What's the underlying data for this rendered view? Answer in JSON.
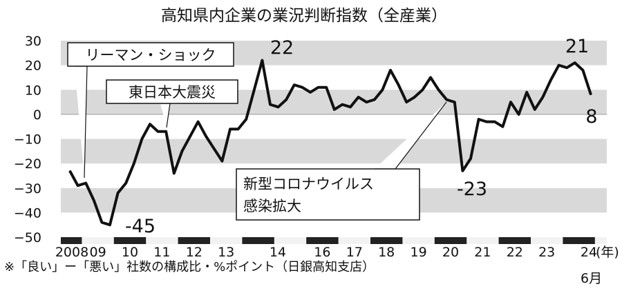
{
  "chart_data": {
    "type": "line",
    "title": "高知県内企業の業況判断指数（全産業）",
    "ylim": [
      -50,
      30
    ],
    "yticks": [
      30,
      20,
      10,
      0,
      -10,
      -20,
      -30,
      -40,
      -50
    ],
    "xtick_labels": [
      "2008",
      "09",
      "10",
      "11",
      "12",
      "13",
      "14",
      "16",
      "17",
      "18",
      "19",
      "20",
      "21",
      "22",
      "23",
      "24"
    ],
    "year_unit": "(年)",
    "end_period": "6月",
    "grid": true,
    "series": [
      {
        "values": [
          -23,
          -29,
          -28,
          -35,
          -44,
          -45,
          -32,
          -28,
          -20,
          -10,
          -4,
          -7,
          -7,
          -24,
          -15,
          -9,
          -3,
          -9,
          -14,
          -19,
          -6,
          -6,
          -2,
          10,
          22,
          4,
          3,
          6,
          12,
          11,
          9,
          11,
          11,
          2,
          4,
          3,
          7,
          5,
          6,
          10,
          18,
          12,
          5,
          7,
          10,
          15,
          10,
          6,
          5,
          -23,
          -18,
          -2,
          -3,
          -3,
          -5,
          5,
          0,
          9,
          2,
          7,
          14,
          20,
          19,
          21,
          18,
          8
        ]
      }
    ],
    "annotations": [
      {
        "id": "min_2009",
        "text": "-45"
      },
      {
        "id": "peak_2014",
        "text": "22"
      },
      {
        "id": "min_2020",
        "text": "-23"
      },
      {
        "id": "peak_2024",
        "text": "21"
      },
      {
        "id": "last_2024",
        "text": "8"
      },
      {
        "id": "lehman",
        "text": "リーマン・ショック"
      },
      {
        "id": "quake",
        "text": "東日本大震災"
      },
      {
        "id": "covid_line1",
        "text": "新型コロナウイルス"
      },
      {
        "id": "covid_line2",
        "text": "感染拡大"
      }
    ]
  },
  "footnote": "※「良い」ー「悪い」社数の構成比・%ポイント（日銀高知支店）"
}
